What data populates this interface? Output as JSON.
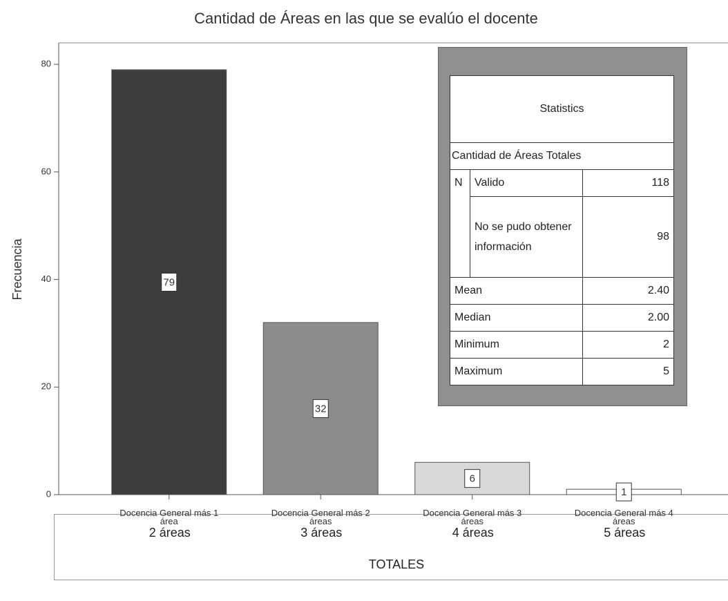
{
  "chart_data": {
    "type": "bar",
    "title": "Cantidad de Áreas en las que se evalúo el docente",
    "y_label": "Frecuencia",
    "categories": [
      "Docencia General más 1 área",
      "Docencia General más 2 áreas",
      "Docencia General más 3 áreas",
      "Docencia General más 4 áreas"
    ],
    "values": [
      79,
      32,
      6,
      1
    ],
    "colors": [
      "#3d3d3d",
      "#8c8c8c",
      "#d9d9d9",
      "#ffffff"
    ],
    "ylim": [
      0,
      84
    ],
    "yticks": [
      0,
      20,
      40,
      60,
      80
    ]
  },
  "statistics": {
    "title": "Statistics",
    "variable": "Cantidad de Áreas Totales",
    "n_label": "N",
    "n_rows": [
      {
        "label": "Valido",
        "value": "118"
      },
      {
        "label": "No se pudo obtener información",
        "value": "98"
      }
    ],
    "rows": [
      {
        "label": "Mean",
        "value": "2.40"
      },
      {
        "label": "Median",
        "value": "2.00"
      },
      {
        "label": "Minimum",
        "value": "2"
      },
      {
        "label": "Maximum",
        "value": "5"
      }
    ]
  },
  "totals": {
    "labels": [
      "2 áreas",
      "3 áreas",
      "4 áreas",
      "5 áreas"
    ],
    "title": "TOTALES"
  }
}
